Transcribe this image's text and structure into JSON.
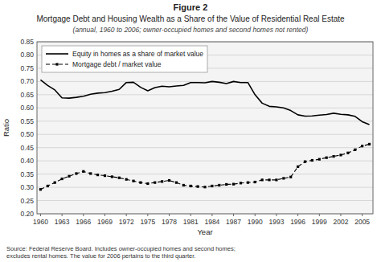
{
  "chart_data": {
    "type": "line",
    "title": "Figure 2",
    "subtitle": "Mortgage Debt and Housing Wealth as a Share of the Value of Residential Real Estate",
    "annotations": [
      "(annual, 1960 to 2006; owner-occupied homes and second homes not rented)",
      "Source: Federal Reserve Board.  Includes owner-occupied homes and second homes;\nexcludes rental homes.  The value for 2006 pertains to the third quarter."
    ],
    "x_label": "Year",
    "y_label": "Ratio",
    "x": [
      1960,
      1961,
      1962,
      1963,
      1964,
      1965,
      1966,
      1967,
      1968,
      1969,
      1970,
      1971,
      1972,
      1973,
      1974,
      1975,
      1976,
      1977,
      1978,
      1979,
      1980,
      1981,
      1982,
      1983,
      1984,
      1985,
      1986,
      1987,
      1988,
      1989,
      1990,
      1991,
      1992,
      1993,
      1994,
      1995,
      1996,
      1997,
      1998,
      1999,
      2000,
      2001,
      2002,
      2003,
      2004,
      2005,
      2006
    ],
    "series": [
      {
        "name": "Equity in homes as a share of market value",
        "color": "#000000",
        "line_style": "solid",
        "marker": "none",
        "values": [
          0.706,
          0.685,
          0.668,
          0.638,
          0.637,
          0.64,
          0.644,
          0.652,
          0.656,
          0.658,
          0.663,
          0.67,
          0.696,
          0.697,
          0.678,
          0.665,
          0.677,
          0.682,
          0.68,
          0.683,
          0.685,
          0.696,
          0.696,
          0.695,
          0.7,
          0.697,
          0.692,
          0.7,
          0.696,
          0.696,
          0.65,
          0.618,
          0.606,
          0.604,
          0.6,
          0.59,
          0.574,
          0.569,
          0.57,
          0.573,
          0.575,
          0.58,
          0.576,
          0.574,
          0.568,
          0.548,
          0.537
        ]
      },
      {
        "name": "Mortgage debt / market value",
        "color": "#000000",
        "line_style": "dashed",
        "marker": "square",
        "values": [
          0.292,
          0.305,
          0.318,
          0.332,
          0.342,
          0.352,
          0.36,
          0.352,
          0.347,
          0.344,
          0.34,
          0.336,
          0.33,
          0.324,
          0.318,
          0.314,
          0.318,
          0.322,
          0.326,
          0.318,
          0.308,
          0.305,
          0.303,
          0.301,
          0.305,
          0.308,
          0.311,
          0.312,
          0.316,
          0.318,
          0.32,
          0.328,
          0.328,
          0.328,
          0.334,
          0.339,
          0.378,
          0.397,
          0.402,
          0.406,
          0.412,
          0.417,
          0.422,
          0.43,
          0.442,
          0.456,
          0.463
        ]
      }
    ],
    "xlim": [
      1959.5,
      2006.5
    ],
    "xticks": [
      1960,
      1963,
      1966,
      1969,
      1972,
      1975,
      1978,
      1981,
      1984,
      1987,
      1990,
      1993,
      1996,
      1999,
      2002,
      2005
    ],
    "ylim": [
      0.2,
      0.85
    ],
    "yticks": [
      {
        "value": 0.2,
        "label": "0.20"
      },
      0.25,
      {
        "value": 0.3,
        "label": "0.30"
      },
      0.35,
      {
        "value": 0.4,
        "label": "0.40"
      },
      0.45,
      {
        "value": 0.5,
        "label": "0.50"
      },
      0.55,
      {
        "value": 0.6,
        "label": "0.60"
      },
      0.65,
      {
        "value": 0.7,
        "label": "0.70"
      },
      0.75,
      {
        "value": 0.8,
        "label": "0.80"
      },
      0.85
    ],
    "grid": true,
    "legend": "upper left"
  }
}
